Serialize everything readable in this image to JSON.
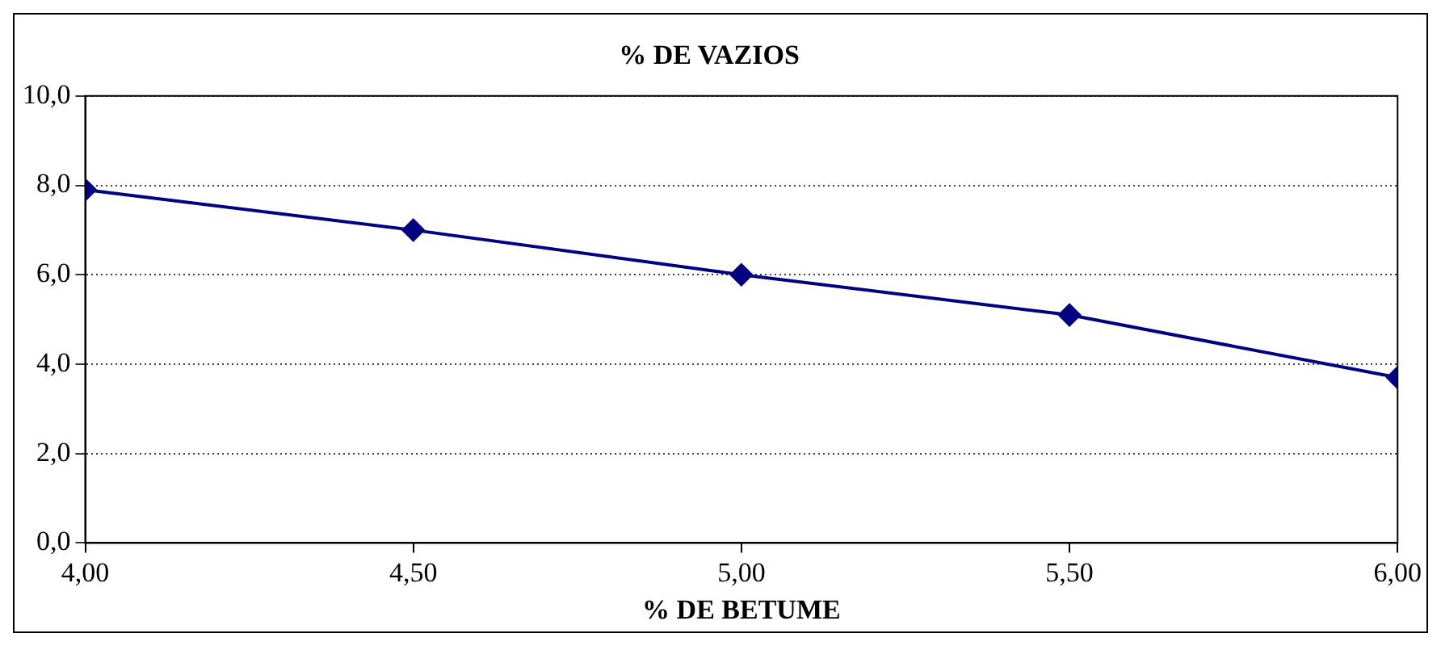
{
  "chart_data": {
    "type": "line",
    "title": "% DE VAZIOS",
    "xlabel": "% DE BETUME",
    "x": [
      4.0,
      4.5,
      5.0,
      5.5,
      6.0
    ],
    "series": [
      {
        "color": "#000080",
        "values": [
          7.9,
          7.0,
          6.0,
          5.1,
          3.7
        ]
      }
    ],
    "xlim": [
      4.0,
      6.0
    ],
    "xticks": [
      {
        "value": 4.0,
        "label": "4,00"
      },
      {
        "value": 4.5,
        "label": "4,50"
      },
      {
        "value": 5.0,
        "label": "5,00"
      },
      {
        "value": 5.5,
        "label": "5,50"
      },
      {
        "value": 6.0,
        "label": "6,00"
      }
    ],
    "ylim": [
      0,
      10
    ],
    "yticks": [
      {
        "value": 0,
        "label": "0,0"
      },
      {
        "value": 2,
        "label": "2,0"
      },
      {
        "value": 4,
        "label": "4,0"
      },
      {
        "value": 6,
        "label": "6,0"
      },
      {
        "value": 8,
        "label": "8,0"
      },
      {
        "value": 10,
        "label": "10,0"
      }
    ],
    "grid": "y",
    "marker": "diamond",
    "line_style": "solid",
    "legend": false
  }
}
